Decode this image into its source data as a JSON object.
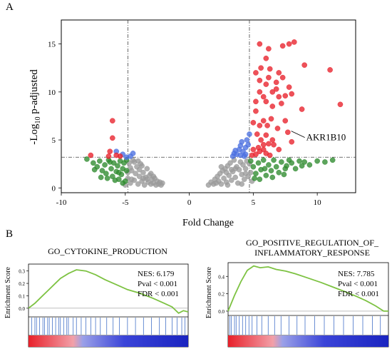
{
  "figure": {
    "panel_a_label": "A",
    "panel_b_label": "B"
  },
  "chart_data": [
    {
      "type": "scatter",
      "title": "",
      "xlabel": "Fold Change",
      "ylabel_main": "-Log",
      "ylabel_sub": "10",
      "ylabel_rest": " p-adjusted",
      "xlim": [
        -10,
        13
      ],
      "ylim": [
        -0.5,
        17.5
      ],
      "xticks": [
        -10,
        -5,
        0,
        5,
        10
      ],
      "yticks": [
        0,
        5,
        10,
        15
      ],
      "threshold_x": [
        -4.8,
        4.7
      ],
      "threshold_y": 3.2,
      "annotation": {
        "label": "AKR1B10",
        "x": 7.8,
        "y": 6.0
      },
      "colors": {
        "red": "#e8202a",
        "blue": "#4a6fe0",
        "green": "#2e8b2e",
        "grey": "#9a9a9a"
      },
      "series": [
        {
          "color": "red",
          "points": [
            [
              -6.0,
              7.0
            ],
            [
              -6.0,
              5.2
            ],
            [
              -7.7,
              3.4
            ],
            [
              -6.3,
              3.3
            ],
            [
              -5.7,
              3.4
            ],
            [
              -5.4,
              3.3
            ],
            [
              -6.2,
              3.8
            ],
            [
              5.2,
              8.0
            ],
            [
              5.0,
              6.8
            ],
            [
              5.5,
              6.5
            ],
            [
              5.8,
              7.0
            ],
            [
              5.3,
              5.6
            ],
            [
              6.1,
              6.5
            ],
            [
              6.4,
              7.2
            ],
            [
              6.0,
              5.5
            ],
            [
              5.6,
              5.0
            ],
            [
              5.8,
              4.5
            ],
            [
              6.2,
              4.6
            ],
            [
              5.4,
              4.2
            ],
            [
              5.0,
              4.0
            ],
            [
              6.0,
              3.6
            ],
            [
              5.2,
              3.5
            ],
            [
              4.9,
              3.4
            ],
            [
              5.5,
              3.8
            ],
            [
              6.3,
              3.4
            ],
            [
              5.8,
              4.0
            ],
            [
              6.6,
              4.5
            ],
            [
              6.0,
              9.0
            ],
            [
              6.5,
              8.5
            ],
            [
              7.0,
              9.5
            ],
            [
              7.2,
              8.8
            ],
            [
              6.8,
              10.3
            ],
            [
              7.5,
              9.6
            ],
            [
              6.8,
              11.0
            ],
            [
              7.0,
              12.0
            ],
            [
              6.3,
              12.4
            ],
            [
              6.0,
              10.8
            ],
            [
              6.5,
              10.0
            ],
            [
              5.8,
              9.5
            ],
            [
              8.0,
              9.8
            ],
            [
              7.8,
              10.5
            ],
            [
              7.3,
              11.5
            ],
            [
              6.0,
              13.5
            ],
            [
              5.6,
              12.5
            ],
            [
              5.2,
              12.0
            ],
            [
              5.5,
              11.2
            ],
            [
              6.2,
              11.5
            ],
            [
              5.5,
              15.0
            ],
            [
              6.2,
              14.5
            ],
            [
              7.8,
              15.0
            ],
            [
              8.2,
              15.2
            ],
            [
              7.3,
              14.8
            ],
            [
              9.0,
              12.8
            ],
            [
              11.0,
              12.3
            ],
            [
              11.8,
              8.7
            ],
            [
              8.8,
              8.2
            ],
            [
              7.7,
              5.8
            ],
            [
              6.9,
              6.2
            ],
            [
              6.5,
              5.0
            ],
            [
              7.0,
              4.0
            ],
            [
              8.0,
              4.8
            ],
            [
              7.5,
              7.0
            ],
            [
              5.2,
              9.0
            ],
            [
              5.5,
              10.0
            ]
          ]
        },
        {
          "color": "blue",
          "points": [
            [
              -5.7,
              3.8
            ],
            [
              -5.2,
              3.5
            ],
            [
              -4.9,
              3.2
            ],
            [
              -4.6,
              3.3
            ],
            [
              -4.4,
              3.6
            ],
            [
              3.4,
              3.3
            ],
            [
              3.7,
              3.5
            ],
            [
              4.0,
              3.4
            ],
            [
              4.2,
              3.8
            ],
            [
              4.4,
              4.2
            ],
            [
              4.6,
              4.5
            ],
            [
              3.9,
              4.0
            ],
            [
              4.3,
              3.3
            ],
            [
              4.0,
              4.4
            ],
            [
              4.5,
              5.0
            ],
            [
              4.7,
              5.6
            ],
            [
              3.6,
              3.9
            ],
            [
              4.1,
              4.8
            ],
            [
              3.5,
              3.6
            ],
            [
              4.4,
              3.5
            ]
          ]
        },
        {
          "color": "green",
          "points": [
            [
              -8.0,
              3.0
            ],
            [
              -7.5,
              2.6
            ],
            [
              -7.2,
              2.2
            ],
            [
              -7.0,
              2.8
            ],
            [
              -6.8,
              1.8
            ],
            [
              -6.6,
              2.4
            ],
            [
              -6.5,
              1.5
            ],
            [
              -6.3,
              2.9
            ],
            [
              -6.1,
              2.0
            ],
            [
              -6.0,
              1.2
            ],
            [
              -5.9,
              2.6
            ],
            [
              -5.7,
              1.7
            ],
            [
              -5.6,
              2.3
            ],
            [
              -5.5,
              0.9
            ],
            [
              -5.4,
              2.8
            ],
            [
              -5.3,
              1.4
            ],
            [
              -5.2,
              2.0
            ],
            [
              -5.1,
              2.6
            ],
            [
              -5.0,
              0.7
            ],
            [
              -4.9,
              1.8
            ],
            [
              -4.9,
              2.9
            ],
            [
              -6.4,
              1.0
            ],
            [
              -6.2,
              2.7
            ],
            [
              -5.8,
              0.8
            ],
            [
              -7.4,
              1.9
            ],
            [
              -6.9,
              1.1
            ],
            [
              -5.5,
              1.6
            ],
            [
              -5.2,
              0.5
            ],
            [
              4.8,
              2.8
            ],
            [
              5.0,
              2.2
            ],
            [
              5.2,
              1.5
            ],
            [
              5.4,
              2.6
            ],
            [
              5.6,
              1.9
            ],
            [
              5.8,
              2.9
            ],
            [
              6.0,
              1.3
            ],
            [
              6.2,
              2.4
            ],
            [
              6.4,
              1.8
            ],
            [
              6.6,
              2.9
            ],
            [
              6.8,
              2.2
            ],
            [
              7.0,
              1.6
            ],
            [
              7.2,
              2.7
            ],
            [
              7.4,
              1.4
            ],
            [
              7.6,
              2.3
            ],
            [
              7.8,
              2.9
            ],
            [
              8.0,
              2.6
            ],
            [
              8.3,
              2.0
            ],
            [
              8.6,
              2.8
            ],
            [
              9.0,
              2.7
            ],
            [
              9.4,
              2.4
            ],
            [
              10.0,
              2.8
            ],
            [
              10.6,
              2.7
            ],
            [
              11.2,
              2.9
            ],
            [
              5.1,
              1.0
            ],
            [
              5.5,
              0.9
            ],
            [
              6.5,
              1.1
            ],
            [
              7.5,
              2.0
            ],
            [
              8.8,
              2.3
            ],
            [
              5.9,
              2.0
            ]
          ]
        },
        {
          "color": "grey",
          "points": [
            [
              -5.0,
              0.3
            ],
            [
              -4.8,
              1.0
            ],
            [
              -4.7,
              2.6
            ],
            [
              -4.6,
              0.5
            ],
            [
              -4.5,
              1.8
            ],
            [
              -4.4,
              2.9
            ],
            [
              -4.3,
              0.8
            ],
            [
              -4.2,
              1.5
            ],
            [
              -4.1,
              2.2
            ],
            [
              -4.0,
              0.4
            ],
            [
              -3.9,
              1.2
            ],
            [
              -3.8,
              2.5
            ],
            [
              -3.7,
              0.7
            ],
            [
              -3.6,
              1.6
            ],
            [
              -3.5,
              0.3
            ],
            [
              -3.4,
              1.1
            ],
            [
              -3.3,
              2.0
            ],
            [
              -3.2,
              0.6
            ],
            [
              -3.1,
              1.3
            ],
            [
              -3.0,
              0.4
            ],
            [
              -2.9,
              0.9
            ],
            [
              -2.8,
              0.5
            ],
            [
              -2.7,
              1.0
            ],
            [
              -2.6,
              0.3
            ],
            [
              -2.5,
              0.7
            ],
            [
              -2.4,
              0.4
            ],
            [
              -2.3,
              0.6
            ],
            [
              -2.2,
              0.3
            ],
            [
              -2.1,
              0.5
            ],
            [
              -4.6,
              2.1
            ],
            [
              -4.3,
              2.7
            ],
            [
              -3.9,
              1.9
            ],
            [
              -3.6,
              1.0
            ],
            [
              -3.3,
              0.9
            ],
            [
              -4.8,
              1.6
            ],
            [
              -4.0,
              2.8
            ],
            [
              -3.7,
              2.3
            ],
            [
              -4.5,
              0.9
            ],
            [
              -3.0,
              1.5
            ],
            [
              -2.8,
              1.2
            ],
            [
              1.5,
              0.3
            ],
            [
              1.7,
              0.6
            ],
            [
              1.9,
              0.4
            ],
            [
              2.0,
              0.9
            ],
            [
              2.1,
              0.5
            ],
            [
              2.2,
              1.2
            ],
            [
              2.3,
              0.7
            ],
            [
              2.4,
              1.5
            ],
            [
              2.5,
              0.4
            ],
            [
              2.6,
              1.8
            ],
            [
              2.7,
              1.0
            ],
            [
              2.8,
              2.0
            ],
            [
              2.9,
              0.6
            ],
            [
              3.0,
              2.3
            ],
            [
              3.1,
              1.3
            ],
            [
              3.2,
              2.6
            ],
            [
              3.3,
              0.8
            ],
            [
              3.4,
              1.7
            ],
            [
              3.5,
              2.9
            ],
            [
              3.6,
              1.1
            ],
            [
              3.7,
              2.2
            ],
            [
              3.8,
              0.5
            ],
            [
              3.9,
              1.9
            ],
            [
              4.0,
              2.7
            ],
            [
              4.1,
              1.4
            ],
            [
              4.2,
              2.4
            ],
            [
              4.3,
              0.9
            ],
            [
              4.4,
              2.0
            ],
            [
              4.5,
              2.8
            ],
            [
              4.6,
              1.2
            ],
            [
              4.7,
              2.5
            ],
            [
              4.8,
              1.6
            ],
            [
              4.9,
              0.7
            ],
            [
              2.5,
              2.2
            ],
            [
              3.0,
              0.3
            ],
            [
              3.6,
              2.0
            ],
            [
              4.1,
              0.4
            ],
            [
              4.4,
              1.5
            ],
            [
              3.3,
              1.9
            ],
            [
              2.9,
              1.6
            ]
          ]
        }
      ]
    },
    {
      "type": "line",
      "title": "GO_CYTOKINE_PRODUCTION",
      "ylabel": "Enrichment Score",
      "xlim": [
        0,
        1
      ],
      "ylim": [
        -0.07,
        0.35
      ],
      "yticks": [
        0.0,
        0.1,
        0.2,
        0.3
      ],
      "ytick_labels": [
        "0.0",
        "0.1",
        "0.2",
        "0.3"
      ],
      "stats": [
        "NES: 6.179",
        "Pval < 0.001",
        "FDR < 0.001"
      ],
      "curve_color": "#7dc242",
      "x": [
        0,
        0.04,
        0.08,
        0.12,
        0.16,
        0.2,
        0.25,
        0.3,
        0.36,
        0.42,
        0.48,
        0.55,
        0.62,
        0.7,
        0.78,
        0.85,
        0.9,
        0.94,
        0.97,
        1.0
      ],
      "values": [
        0.0,
        0.04,
        0.09,
        0.14,
        0.19,
        0.24,
        0.28,
        0.31,
        0.3,
        0.27,
        0.23,
        0.19,
        0.15,
        0.12,
        0.08,
        0.04,
        0.01,
        -0.04,
        -0.02,
        -0.03
      ],
      "hits": [
        0.02,
        0.04,
        0.05,
        0.07,
        0.09,
        0.1,
        0.12,
        0.13,
        0.15,
        0.17,
        0.19,
        0.2,
        0.22,
        0.24,
        0.25,
        0.28,
        0.3,
        0.33,
        0.36,
        0.39,
        0.42,
        0.45,
        0.49,
        0.53,
        0.57,
        0.62,
        0.67,
        0.72,
        0.77,
        0.82,
        0.86,
        0.9,
        0.93,
        0.96,
        0.98
      ]
    },
    {
      "type": "line",
      "title_line1": "GO_POSITIVE_REGULATION_OF_",
      "title_line2": "INFLAMMATORY_RESPONSE",
      "ylabel": "Enrichment Score",
      "xlim": [
        0,
        1
      ],
      "ylim": [
        -0.05,
        0.55
      ],
      "yticks": [
        0.0,
        0.2,
        0.4
      ],
      "ytick_labels": [
        "0.0",
        "0.2",
        "0.4"
      ],
      "stats": [
        "NES: 7.785",
        "Pval < 0.001",
        "FDR < 0.001"
      ],
      "curve_color": "#7dc242",
      "x": [
        0,
        0.04,
        0.08,
        0.12,
        0.16,
        0.2,
        0.25,
        0.3,
        0.36,
        0.42,
        0.5,
        0.58,
        0.65,
        0.72,
        0.8,
        0.86,
        0.92,
        0.97,
        1.0
      ],
      "values": [
        0.0,
        0.18,
        0.34,
        0.47,
        0.52,
        0.5,
        0.51,
        0.48,
        0.46,
        0.43,
        0.38,
        0.33,
        0.28,
        0.23,
        0.17,
        0.12,
        0.06,
        0.0,
        0.0
      ],
      "hits": [
        0.01,
        0.02,
        0.04,
        0.05,
        0.07,
        0.09,
        0.11,
        0.13,
        0.15,
        0.18,
        0.21,
        0.25,
        0.29,
        0.33,
        0.38,
        0.43,
        0.48,
        0.54,
        0.6,
        0.66,
        0.72,
        0.78,
        0.84,
        0.9,
        0.95
      ]
    }
  ]
}
